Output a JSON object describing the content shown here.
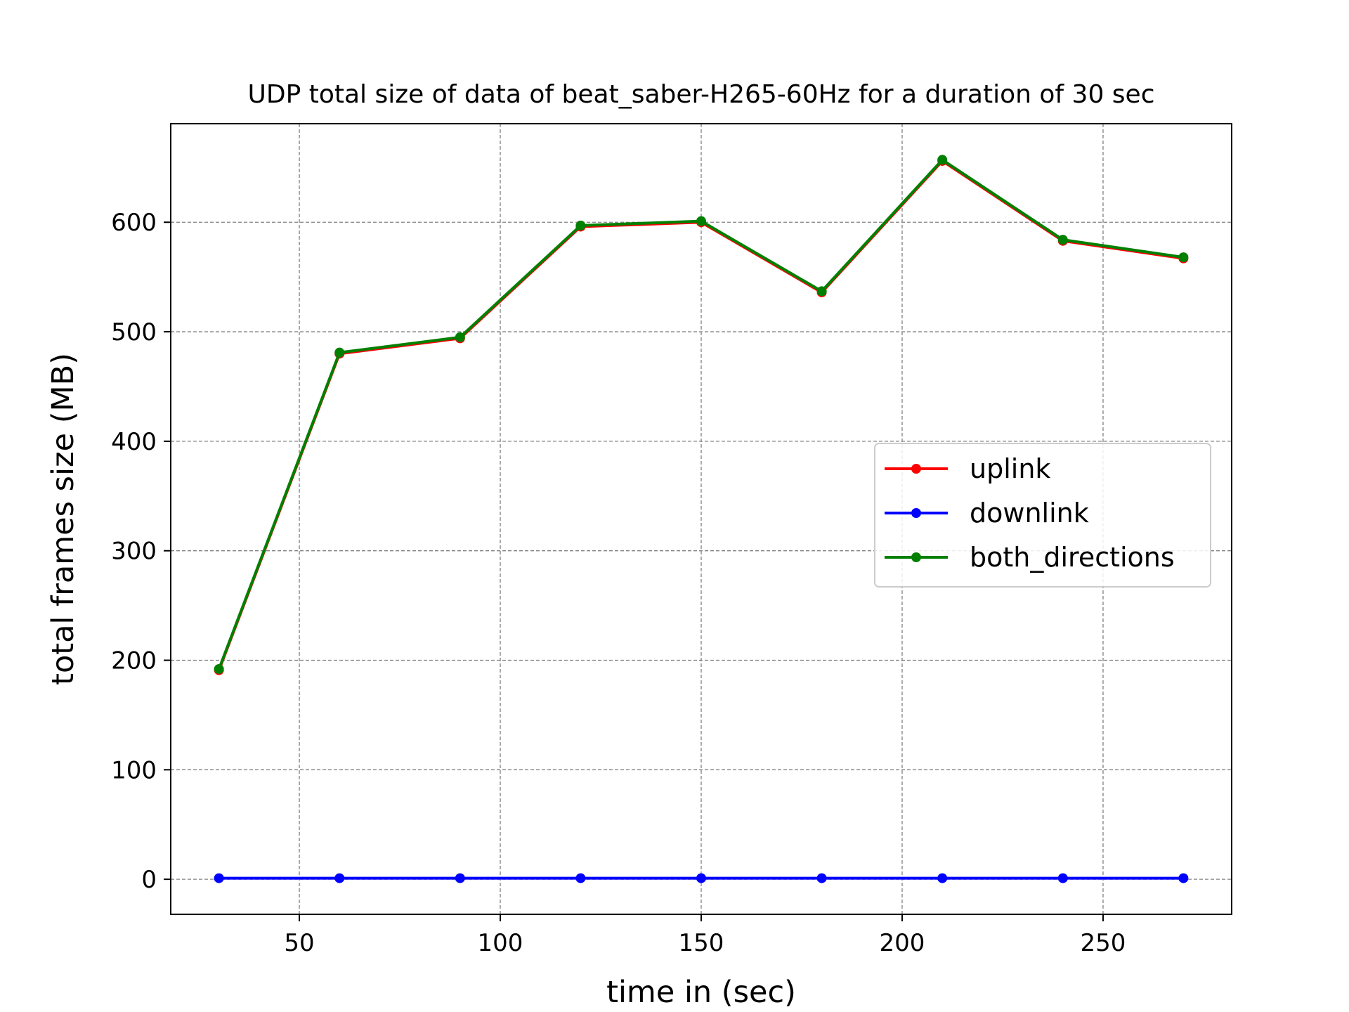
{
  "chart_data": {
    "type": "line",
    "title": "UDP total size of data of beat_saber-H265-60Hz for a duration of 30 sec",
    "xlabel": "time in (sec)",
    "ylabel": "total frames size (MB)",
    "x": [
      30,
      60,
      90,
      120,
      150,
      180,
      210,
      240,
      270
    ],
    "xlim": [
      18,
      282
    ],
    "ylim": [
      -32,
      690
    ],
    "xticks": [
      50,
      100,
      150,
      200,
      250
    ],
    "yticks": [
      0,
      100,
      200,
      300,
      400,
      500,
      600
    ],
    "grid": true,
    "legend_position": "center-right",
    "series": [
      {
        "name": "uplink",
        "color": "#ff0000",
        "values": [
          191,
          480,
          494,
          596,
          600,
          536,
          656,
          583,
          567
        ]
      },
      {
        "name": "downlink",
        "color": "#0000ff",
        "values": [
          1,
          1,
          1,
          1,
          1,
          1,
          1,
          1,
          1
        ]
      },
      {
        "name": "both_directions",
        "color": "#008000",
        "values": [
          192,
          481,
          495,
          597,
          601,
          537,
          657,
          584,
          568
        ]
      }
    ]
  }
}
